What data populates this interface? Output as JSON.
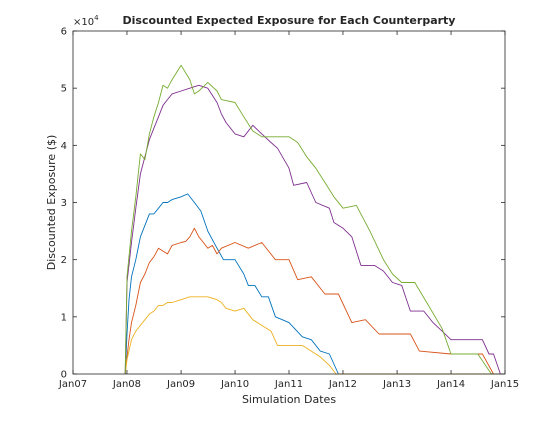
{
  "chart_data": {
    "type": "line",
    "title": "Discounted Expected Exposure for Each Counterparty",
    "xlabel": "Simulation Dates",
    "ylabel": "Discounted Exposure ($)",
    "y_exponent_label": "×10",
    "y_exponent": "4",
    "x_domain": [
      "2007-01-01",
      "2015-01-01"
    ],
    "ylim": [
      0,
      60000
    ],
    "x_ticks": [
      {
        "date": "2007-01-01",
        "label": "Jan07"
      },
      {
        "date": "2008-01-01",
        "label": "Jan08"
      },
      {
        "date": "2009-01-01",
        "label": "Jan09"
      },
      {
        "date": "2010-01-01",
        "label": "Jan10"
      },
      {
        "date": "2011-01-01",
        "label": "Jan11"
      },
      {
        "date": "2012-01-01",
        "label": "Jan12"
      },
      {
        "date": "2013-01-01",
        "label": "Jan13"
      },
      {
        "date": "2014-01-01",
        "label": "Jan14"
      },
      {
        "date": "2015-01-01",
        "label": "Jan15"
      }
    ],
    "y_ticks": [
      {
        "value": 0,
        "label": "0"
      },
      {
        "value": 10000,
        "label": "1"
      },
      {
        "value": 20000,
        "label": "2"
      },
      {
        "value": 30000,
        "label": "3"
      },
      {
        "value": 40000,
        "label": "4"
      },
      {
        "value": 50000,
        "label": "5"
      },
      {
        "value": 60000,
        "label": "6"
      }
    ],
    "grid": false,
    "legend": "none",
    "series": [
      {
        "color": "#0072bd",
        "points": [
          [
            "2007-12-20",
            0
          ],
          [
            "2008-01-01",
            7000
          ],
          [
            "2008-01-15",
            13000
          ],
          [
            "2008-02-01",
            17000
          ],
          [
            "2008-03-01",
            20000
          ],
          [
            "2008-04-01",
            24000
          ],
          [
            "2008-05-01",
            26000
          ],
          [
            "2008-06-01",
            28000
          ],
          [
            "2008-07-01",
            28000
          ],
          [
            "2008-08-01",
            29000
          ],
          [
            "2008-09-01",
            30000
          ],
          [
            "2008-10-01",
            30000
          ],
          [
            "2008-11-01",
            30500
          ],
          [
            "2009-01-01",
            31000
          ],
          [
            "2009-02-15",
            31500
          ],
          [
            "2009-04-01",
            30000
          ],
          [
            "2009-05-15",
            28500
          ],
          [
            "2009-07-01",
            25000
          ],
          [
            "2009-09-01",
            22000
          ],
          [
            "2009-10-15",
            20000
          ],
          [
            "2010-01-01",
            20000
          ],
          [
            "2010-03-01",
            17500
          ],
          [
            "2010-04-01",
            15500
          ],
          [
            "2010-05-15",
            15500
          ],
          [
            "2010-07-01",
            13500
          ],
          [
            "2010-08-15",
            13500
          ],
          [
            "2010-10-01",
            10000
          ],
          [
            "2011-01-01",
            9000
          ],
          [
            "2011-04-01",
            6500
          ],
          [
            "2011-06-01",
            6000
          ],
          [
            "2011-08-01",
            4000
          ],
          [
            "2011-10-01",
            3500
          ],
          [
            "2011-12-01",
            0
          ],
          [
            "2015-01-01",
            0
          ]
        ]
      },
      {
        "color": "#d95319",
        "points": [
          [
            "2007-12-20",
            0
          ],
          [
            "2008-01-01",
            3000
          ],
          [
            "2008-01-15",
            6000
          ],
          [
            "2008-02-01",
            9000
          ],
          [
            "2008-03-01",
            12000
          ],
          [
            "2008-04-01",
            16000
          ],
          [
            "2008-05-01",
            17500
          ],
          [
            "2008-06-01",
            19500
          ],
          [
            "2008-07-01",
            20500
          ],
          [
            "2008-08-01",
            22000
          ],
          [
            "2008-09-01",
            21500
          ],
          [
            "2008-10-01",
            21000
          ],
          [
            "2008-11-01",
            22500
          ],
          [
            "2009-01-01",
            23000
          ],
          [
            "2009-02-01",
            23200
          ],
          [
            "2009-03-01",
            24000
          ],
          [
            "2009-04-01",
            25500
          ],
          [
            "2009-05-01",
            24000
          ],
          [
            "2009-06-01",
            23000
          ],
          [
            "2009-07-01",
            22000
          ],
          [
            "2009-08-01",
            22500
          ],
          [
            "2009-09-01",
            21000
          ],
          [
            "2009-10-01",
            22000
          ],
          [
            "2010-01-01",
            23000
          ],
          [
            "2010-04-01",
            22000
          ],
          [
            "2010-07-01",
            23000
          ],
          [
            "2010-10-01",
            20000
          ],
          [
            "2011-01-01",
            20000
          ],
          [
            "2011-03-01",
            16500
          ],
          [
            "2011-06-01",
            17000
          ],
          [
            "2011-09-01",
            14000
          ],
          [
            "2011-12-01",
            14000
          ],
          [
            "2012-03-01",
            9000
          ],
          [
            "2012-06-01",
            9500
          ],
          [
            "2012-09-01",
            7000
          ],
          [
            "2013-01-01",
            7000
          ],
          [
            "2013-04-01",
            7000
          ],
          [
            "2013-06-01",
            4000
          ],
          [
            "2014-01-01",
            3500
          ],
          [
            "2014-04-01",
            3500
          ],
          [
            "2014-08-01",
            3500
          ],
          [
            "2014-10-15",
            0
          ],
          [
            "2015-01-01",
            0
          ]
        ]
      },
      {
        "color": "#edb120",
        "points": [
          [
            "2007-12-20",
            0
          ],
          [
            "2008-01-01",
            2500
          ],
          [
            "2008-02-01",
            6000
          ],
          [
            "2008-03-01",
            7500
          ],
          [
            "2008-04-01",
            8500
          ],
          [
            "2008-05-01",
            9500
          ],
          [
            "2008-06-01",
            10500
          ],
          [
            "2008-07-01",
            11000
          ],
          [
            "2008-08-01",
            12000
          ],
          [
            "2008-09-01",
            12000
          ],
          [
            "2008-10-01",
            12500
          ],
          [
            "2008-11-01",
            12500
          ],
          [
            "2009-01-01",
            13000
          ],
          [
            "2009-03-01",
            13500
          ],
          [
            "2009-05-01",
            13500
          ],
          [
            "2009-07-01",
            13500
          ],
          [
            "2009-09-01",
            13000
          ],
          [
            "2009-10-01",
            12500
          ],
          [
            "2009-11-01",
            11500
          ],
          [
            "2010-01-01",
            11000
          ],
          [
            "2010-03-01",
            11500
          ],
          [
            "2010-05-01",
            9500
          ],
          [
            "2010-07-01",
            8500
          ],
          [
            "2010-09-01",
            7500
          ],
          [
            "2010-10-15",
            5000
          ],
          [
            "2011-01-01",
            5000
          ],
          [
            "2011-04-01",
            5000
          ],
          [
            "2011-06-01",
            4000
          ],
          [
            "2011-08-01",
            3000
          ],
          [
            "2011-10-01",
            1500
          ],
          [
            "2011-11-15",
            0
          ],
          [
            "2015-01-01",
            0
          ]
        ]
      },
      {
        "color": "#7e2f8e",
        "points": [
          [
            "2007-12-20",
            0
          ],
          [
            "2008-01-01",
            16000
          ],
          [
            "2008-02-01",
            23000
          ],
          [
            "2008-03-01",
            29000
          ],
          [
            "2008-04-01",
            35000
          ],
          [
            "2008-05-01",
            38000
          ],
          [
            "2008-06-01",
            41000
          ],
          [
            "2008-07-01",
            43000
          ],
          [
            "2008-08-01",
            45000
          ],
          [
            "2008-09-01",
            47000
          ],
          [
            "2008-10-01",
            48000
          ],
          [
            "2008-11-01",
            49000
          ],
          [
            "2009-01-01",
            49500
          ],
          [
            "2009-03-01",
            50000
          ],
          [
            "2009-05-01",
            50500
          ],
          [
            "2009-07-01",
            50000
          ],
          [
            "2009-09-01",
            47500
          ],
          [
            "2009-10-01",
            45500
          ],
          [
            "2009-11-01",
            44000
          ],
          [
            "2010-01-01",
            42000
          ],
          [
            "2010-03-01",
            41500
          ],
          [
            "2010-05-01",
            43500
          ],
          [
            "2010-07-01",
            42000
          ],
          [
            "2010-09-01",
            40500
          ],
          [
            "2010-10-15",
            39500
          ],
          [
            "2011-01-01",
            36000
          ],
          [
            "2011-02-01",
            33000
          ],
          [
            "2011-05-01",
            33500
          ],
          [
            "2011-07-01",
            30000
          ],
          [
            "2011-10-01",
            29000
          ],
          [
            "2011-11-01",
            26500
          ],
          [
            "2012-01-01",
            25500
          ],
          [
            "2012-03-01",
            24000
          ],
          [
            "2012-05-01",
            19000
          ],
          [
            "2012-08-01",
            19000
          ],
          [
            "2012-10-01",
            18000
          ],
          [
            "2012-12-01",
            16000
          ],
          [
            "2013-02-01",
            15500
          ],
          [
            "2013-04-01",
            11000
          ],
          [
            "2013-07-01",
            11000
          ],
          [
            "2013-09-01",
            9000
          ],
          [
            "2013-11-01",
            7500
          ],
          [
            "2014-01-01",
            6000
          ],
          [
            "2014-05-01",
            6000
          ],
          [
            "2014-08-01",
            6000
          ],
          [
            "2014-09-15",
            3500
          ],
          [
            "2014-10-15",
            3500
          ],
          [
            "2014-12-01",
            0
          ],
          [
            "2015-01-01",
            0
          ]
        ]
      },
      {
        "color": "#77ac30",
        "points": [
          [
            "2007-12-20",
            0
          ],
          [
            "2008-01-01",
            17000
          ],
          [
            "2008-02-01",
            25000
          ],
          [
            "2008-03-01",
            31000
          ],
          [
            "2008-04-01",
            38500
          ],
          [
            "2008-05-01",
            37500
          ],
          [
            "2008-06-01",
            42000
          ],
          [
            "2008-07-01",
            45000
          ],
          [
            "2008-08-01",
            47500
          ],
          [
            "2008-09-01",
            50500
          ],
          [
            "2008-10-01",
            50000
          ],
          [
            "2008-11-01",
            51500
          ],
          [
            "2009-01-01",
            54000
          ],
          [
            "2009-03-01",
            51500
          ],
          [
            "2009-04-01",
            49000
          ],
          [
            "2009-05-01",
            49500
          ],
          [
            "2009-07-01",
            51000
          ],
          [
            "2009-09-01",
            49500
          ],
          [
            "2009-10-01",
            48000
          ],
          [
            "2010-01-01",
            47500
          ],
          [
            "2010-03-01",
            45000
          ],
          [
            "2010-05-01",
            42500
          ],
          [
            "2010-07-01",
            41500
          ],
          [
            "2010-09-01",
            41500
          ],
          [
            "2010-11-01",
            41500
          ],
          [
            "2011-01-01",
            41500
          ],
          [
            "2011-03-01",
            40500
          ],
          [
            "2011-05-01",
            38000
          ],
          [
            "2011-07-01",
            36000
          ],
          [
            "2011-09-01",
            33500
          ],
          [
            "2011-11-01",
            31000
          ],
          [
            "2012-01-01",
            29000
          ],
          [
            "2012-04-01",
            29500
          ],
          [
            "2012-07-01",
            25000
          ],
          [
            "2012-10-01",
            20000
          ],
          [
            "2012-12-01",
            17500
          ],
          [
            "2013-02-01",
            16000
          ],
          [
            "2013-05-01",
            16000
          ],
          [
            "2013-08-01",
            12000
          ],
          [
            "2013-11-01",
            8000
          ],
          [
            "2014-01-01",
            3500
          ],
          [
            "2014-04-01",
            3500
          ],
          [
            "2014-07-01",
            3500
          ],
          [
            "2014-10-01",
            0
          ],
          [
            "2015-01-01",
            0
          ]
        ]
      }
    ]
  }
}
